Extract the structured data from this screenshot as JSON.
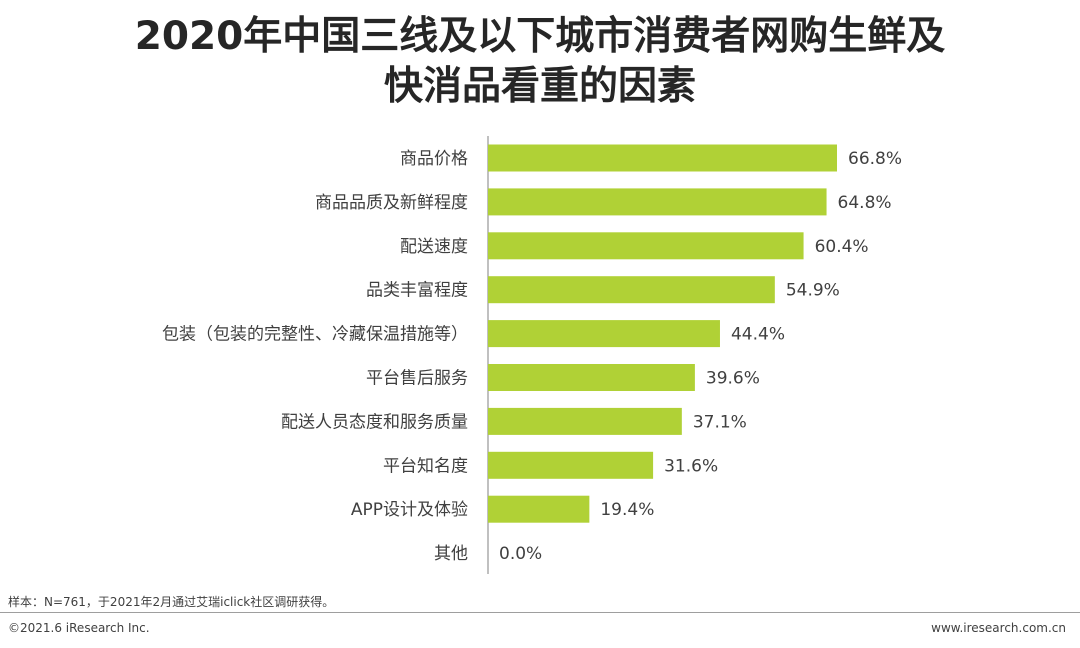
{
  "title_line1": "2020年中国三线及以下城市消费者网购生鲜及",
  "title_line2": "快消品看重的因素",
  "footer": {
    "note": "样本：N=761，于2021年2月通过艾瑞iclick社区调研获得。",
    "copyright": "©2021.6 iResearch Inc.",
    "website": "www.iresearch.com.cn"
  },
  "colors": {
    "bar": "#b0d136",
    "axis": "#808080",
    "text": "#404040"
  },
  "chart_data": {
    "type": "bar",
    "orientation": "horizontal",
    "categories": [
      "商品价格",
      "商品品质及新鲜程度",
      "配送速度",
      "品类丰富程度",
      "包装（包装的完整性、冷藏保温措施等）",
      "平台售后服务",
      "配送人员态度和服务质量",
      "平台知名度",
      "APP设计及体验",
      "其他"
    ],
    "values": [
      66.8,
      64.8,
      60.4,
      54.9,
      44.4,
      39.6,
      37.1,
      31.6,
      19.4,
      0.0
    ],
    "value_labels": [
      "66.8%",
      "64.8%",
      "60.4%",
      "54.9%",
      "44.4%",
      "39.6%",
      "37.1%",
      "31.6%",
      "19.4%",
      "0.0%"
    ],
    "unit": "%",
    "grid": false,
    "legend": "none"
  }
}
